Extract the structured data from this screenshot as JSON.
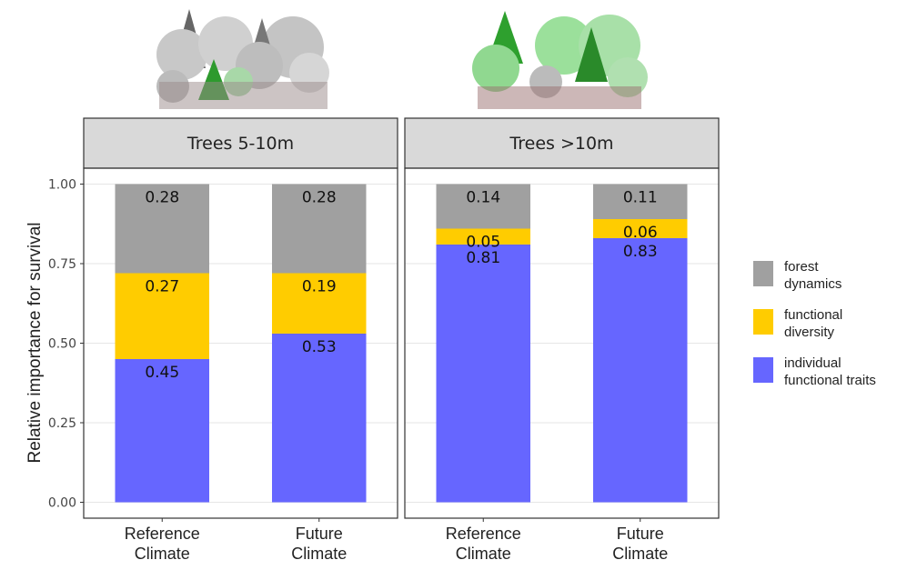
{
  "chart_data": [
    {
      "type": "bar",
      "stacked": true,
      "title": "Trees 5-10m",
      "y_label": "Relative importance for survival",
      "categories": [
        "Reference\nClimate",
        "Future\nClimate"
      ],
      "series": [
        {
          "name": "individual\nfunctional traits",
          "color": "#6666ff",
          "values": [
            0.45,
            0.53
          ]
        },
        {
          "name": "functional\ndiversity",
          "color": "#ffcc00",
          "values": [
            0.27,
            0.19
          ]
        },
        {
          "name": "forest\ndynamics",
          "color": "#a0a0a0",
          "values": [
            0.28,
            0.28
          ]
        }
      ],
      "ylim": [
        -0.05,
        1.05
      ],
      "yticks": [
        {
          "value": 0,
          "label": "0.00"
        },
        {
          "value": 0.25,
          "label": "0.25"
        },
        {
          "value": 0.5,
          "label": "0.50"
        },
        {
          "value": 0.75,
          "label": "0.75"
        },
        {
          "value": 1,
          "label": "1.00"
        }
      ],
      "grid": true
    },
    {
      "type": "bar",
      "stacked": true,
      "title": "Trees >10m",
      "categories": [
        "Reference\nClimate",
        "Future\nClimate"
      ],
      "series": [
        {
          "color": "#6666ff",
          "values": [
            0.81,
            0.83
          ]
        },
        {
          "color": "#ffcc00",
          "values": [
            0.05,
            0.06
          ]
        },
        {
          "color": "#a0a0a0",
          "values": [
            0.14,
            0.11
          ]
        }
      ],
      "ylim": [
        -0.05,
        1.05
      ],
      "yticks": [
        0,
        0.25,
        0.5,
        0.75,
        1
      ],
      "grid": true
    }
  ]
}
